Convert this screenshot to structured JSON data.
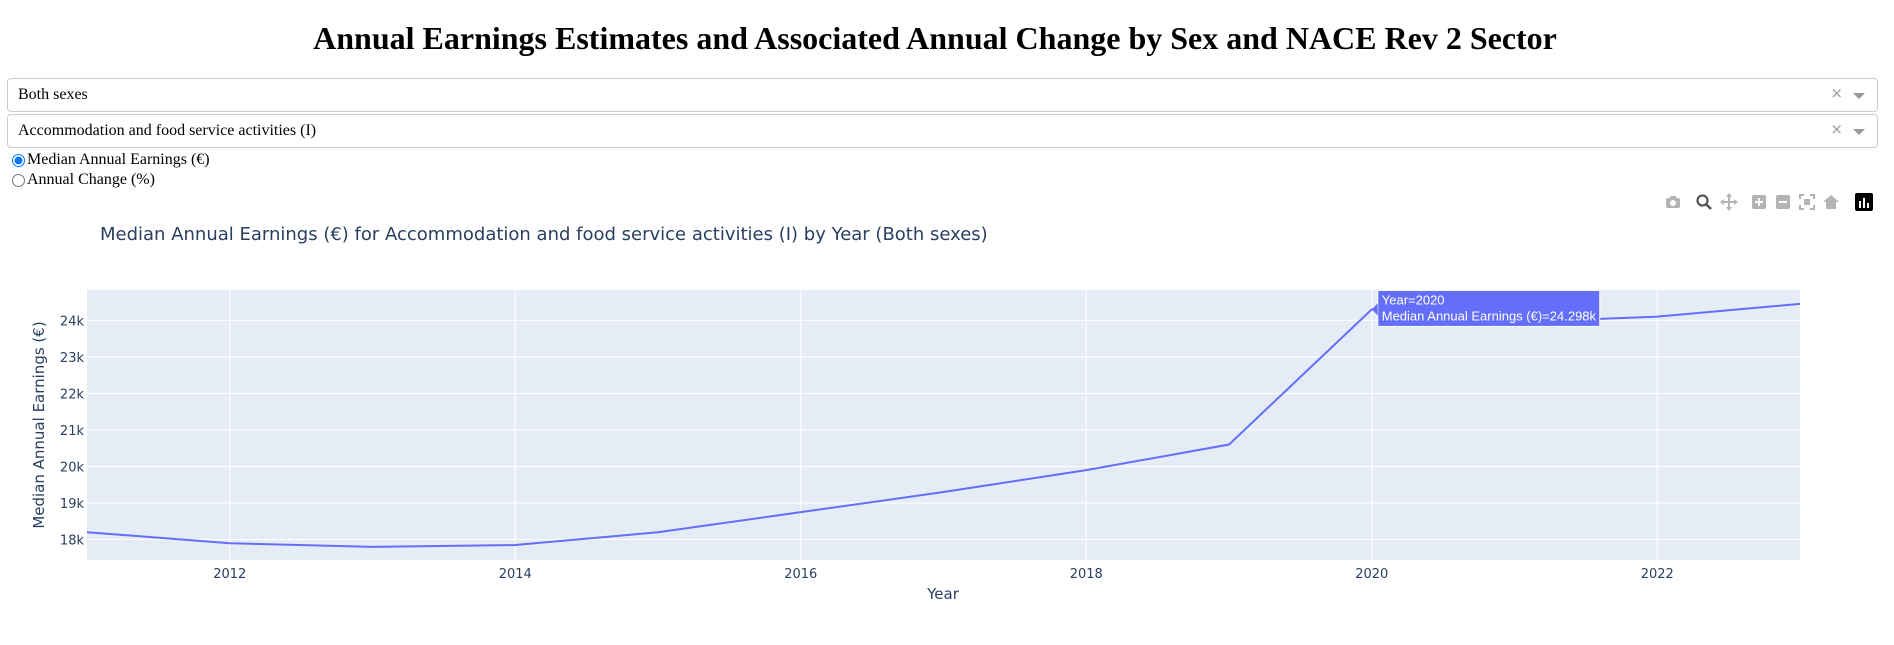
{
  "page": {
    "title": "Annual Earnings Estimates and Associated Annual Change by Sex and NACE Rev 2 Sector"
  },
  "filters": {
    "sex": {
      "value": "Both sexes"
    },
    "sector": {
      "value": "Accommodation and food service activities (I)"
    },
    "clear_symbol": "×"
  },
  "measure": {
    "options": [
      {
        "label": "Median Annual Earnings (€)",
        "selected": true
      },
      {
        "label": "Annual Change (%)",
        "selected": false
      }
    ]
  },
  "modebar": {
    "icons": [
      "camera-icon",
      "zoom-icon",
      "pan-icon",
      "zoom-in-icon",
      "zoom-out-icon",
      "autoscale-icon",
      "reset-axes-icon",
      "plotly-logo-icon"
    ]
  },
  "colors": {
    "line": "#636efa",
    "plot_bg": "#e5ecf6",
    "grid": "#ffffff",
    "text": "#2a3f5f"
  },
  "chart_data": {
    "type": "line",
    "title": "Median Annual Earnings (€) for Accommodation and food service activities (I) by Year (Both sexes)",
    "xlabel": "Year",
    "ylabel": "Median Annual Earnings (€)",
    "x": [
      2011,
      2012,
      2013,
      2014,
      2015,
      2016,
      2017,
      2018,
      2019,
      2020,
      2021,
      2022,
      2023
    ],
    "series": [
      {
        "values": [
          18200,
          17900,
          17800,
          17850,
          18200,
          18750,
          19300,
          19900,
          20600,
          24298,
          23950,
          24100,
          24450
        ]
      }
    ],
    "xlim": [
      2011,
      2023
    ],
    "ylim": [
      17440,
      24830
    ],
    "x_ticks": [
      2012,
      2014,
      2016,
      2018,
      2020,
      2022
    ],
    "y_ticks": [
      18000,
      19000,
      20000,
      21000,
      22000,
      23000,
      24000
    ],
    "y_tick_labels": [
      "18k",
      "19k",
      "20k",
      "21k",
      "22k",
      "23k",
      "24k"
    ],
    "grid": true,
    "hover": {
      "x": 2020,
      "lines": [
        "Year=2020",
        "Median Annual Earnings (€)=24.298k"
      ]
    }
  }
}
